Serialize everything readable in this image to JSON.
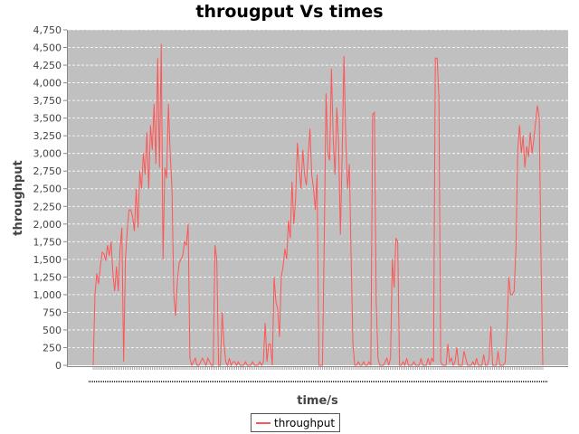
{
  "chart_data": {
    "type": "line",
    "title": "througput Vs times",
    "xlabel": "time/s",
    "ylabel": "throughput",
    "ylim": [
      0,
      4750
    ],
    "y_ticks": [
      0,
      250,
      500,
      750,
      1000,
      1250,
      1500,
      1750,
      2000,
      2250,
      2500,
      2750,
      3000,
      3250,
      3500,
      3750,
      4000,
      4250,
      4500,
      4750
    ],
    "x_tick_labels_visible": false,
    "grid": true,
    "legend": "bottom-center",
    "background_color": "#c0c0c0",
    "series": [
      {
        "name": "throughput",
        "color": "#ff5555",
        "values": [
          0,
          1000,
          1300,
          1150,
          1400,
          1600,
          1580,
          1480,
          1700,
          1550,
          1750,
          1300,
          1050,
          1400,
          1050,
          1650,
          1950,
          50,
          1500,
          1900,
          2200,
          2200,
          2100,
          1900,
          2500,
          1950,
          2750,
          2500,
          3000,
          2700,
          3300,
          2500,
          3400,
          3050,
          3700,
          2850,
          4350,
          2800,
          4550,
          1500,
          2800,
          2650,
          3700,
          3000,
          2500,
          1000,
          700,
          1200,
          1450,
          1500,
          1550,
          1750,
          1700,
          2000,
          100,
          0,
          50,
          100,
          0,
          0,
          50,
          100,
          50,
          0,
          100,
          50,
          0,
          0,
          1700,
          1500,
          0,
          0,
          750,
          300,
          50,
          0,
          100,
          0,
          50,
          50,
          0,
          50,
          0,
          0,
          0,
          50,
          0,
          0,
          0,
          50,
          0,
          0,
          0,
          50,
          0,
          50,
          600,
          50,
          300,
          300,
          0,
          1250,
          900,
          800,
          400,
          1250,
          1400,
          1650,
          1500,
          2050,
          1800,
          2600,
          2000,
          2350,
          3150,
          2800,
          2500,
          3050,
          2700,
          2550,
          2950,
          3350,
          2700,
          2500,
          2200,
          2700,
          0,
          0,
          0,
          1800,
          3850,
          3000,
          2900,
          4200,
          3200,
          2700,
          3650,
          3150,
          1850,
          3000,
          4380,
          3200,
          2500,
          2850,
          1500,
          300,
          0,
          0,
          50,
          0,
          0,
          50,
          0,
          0,
          50,
          0,
          3550,
          3580,
          900,
          100,
          0,
          0,
          0,
          50,
          100,
          0,
          100,
          1500,
          1100,
          1800,
          1750,
          0,
          0,
          50,
          0,
          100,
          0,
          0,
          0,
          50,
          0,
          0,
          0,
          100,
          0,
          0,
          0,
          100,
          0,
          100,
          50,
          4350,
          4350,
          3800,
          50,
          0,
          0,
          0,
          300,
          50,
          100,
          0,
          50,
          250,
          0,
          0,
          0,
          200,
          100,
          0,
          0,
          0,
          50,
          0,
          100,
          0,
          0,
          0,
          150,
          0,
          0,
          100,
          550,
          0,
          0,
          0,
          200,
          0,
          0,
          0,
          50,
          500,
          1250,
          1000,
          1000,
          1050,
          1650,
          3050,
          3400,
          3000,
          3250,
          2800,
          3100,
          2950,
          3300,
          3000,
          3200,
          3450,
          3680,
          3500,
          1500,
          0
        ]
      }
    ]
  },
  "legend": {
    "label": "throughput"
  }
}
